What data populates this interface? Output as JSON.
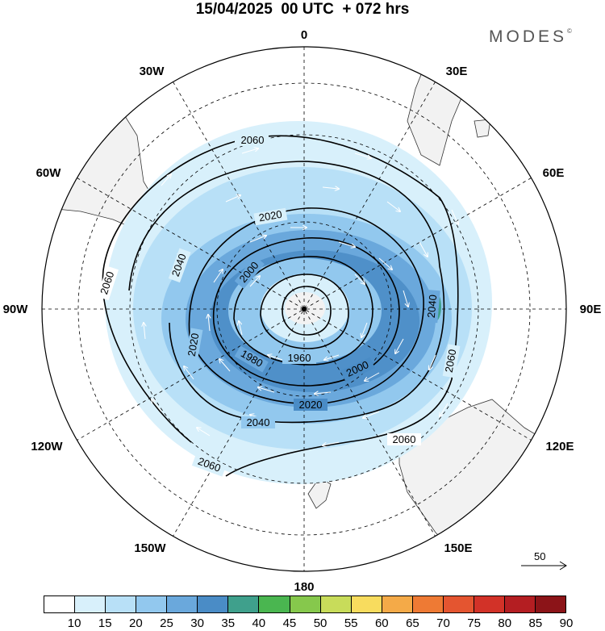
{
  "header": {
    "title": "15/04/2025  00 UTC  + 072 hrs",
    "brand": "MODES",
    "brand_mark": "©"
  },
  "map": {
    "projection": "south-polar-stereographic",
    "longitude_labels": [
      {
        "key": "lon-0",
        "text": "0"
      },
      {
        "key": "lon-30e",
        "text": "30E"
      },
      {
        "key": "lon-60e",
        "text": "60E"
      },
      {
        "key": "lon-90e",
        "text": "90E"
      },
      {
        "key": "lon-120e",
        "text": "120E"
      },
      {
        "key": "lon-150e",
        "text": "150E"
      },
      {
        "key": "lon-180",
        "text": "180"
      },
      {
        "key": "lon-150w",
        "text": "150W"
      },
      {
        "key": "lon-120w",
        "text": "120W"
      },
      {
        "key": "lon-90w",
        "text": "90W"
      },
      {
        "key": "lon-60w",
        "text": "60W"
      },
      {
        "key": "lon-30w",
        "text": "30W"
      }
    ],
    "contour_labels": [
      "2060",
      "2060",
      "2060",
      "2060",
      "2060",
      "2040",
      "2040",
      "2040",
      "2020",
      "2020",
      "2020",
      "2000",
      "2000",
      "1980",
      "1960"
    ],
    "contour_levels": [
      1960,
      1980,
      2000,
      2020,
      2040,
      2060
    ],
    "land_color": "#f2f2f2",
    "contour_color": "#000000"
  },
  "reference_vector": {
    "value": "50"
  },
  "colorbar": {
    "labels": [
      "10",
      "15",
      "20",
      "25",
      "30",
      "35",
      "40",
      "45",
      "50",
      "55",
      "60",
      "65",
      "70",
      "75",
      "80",
      "85",
      "90"
    ],
    "colors": [
      "#ffffff",
      "#d8f0fb",
      "#b8e0f7",
      "#92c8ee",
      "#6aa8dc",
      "#4a8cc6",
      "#3fa08c",
      "#4ab650",
      "#86c84c",
      "#c8dc5a",
      "#f8dc5e",
      "#f4aa48",
      "#ee7a34",
      "#e45530",
      "#d23228",
      "#b41e22",
      "#8c1418"
    ]
  }
}
